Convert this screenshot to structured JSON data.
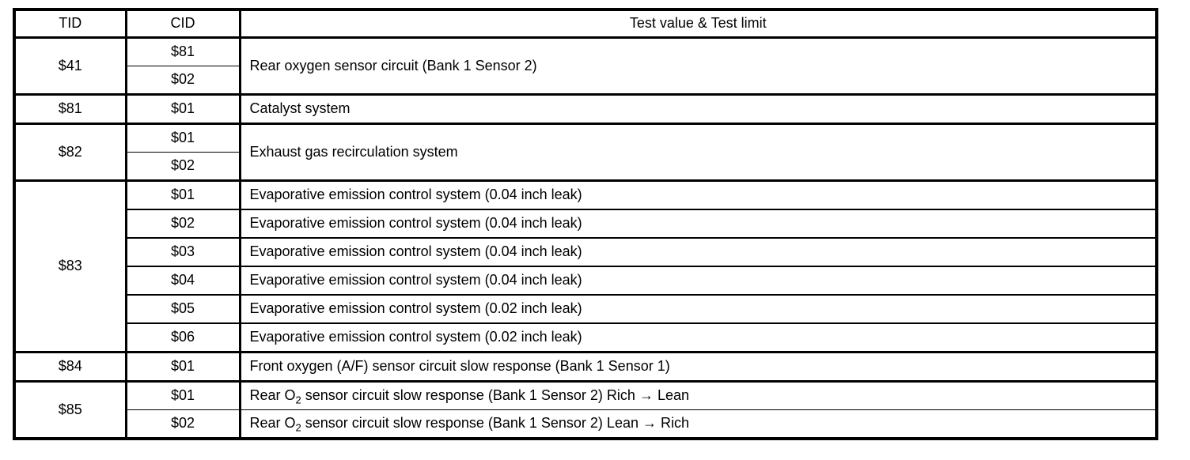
{
  "colors": {
    "background": "#ffffff",
    "border": "#000000",
    "text": "#000000"
  },
  "table": {
    "headers": {
      "tid": "TID",
      "cid": "CID",
      "test": "Test value & Test limit"
    },
    "rows": [
      {
        "tid": "$41",
        "cid": "$81",
        "desc": "Rear oxygen sensor circuit (Bank 1 Sensor 2)"
      },
      {
        "cid": "$02"
      },
      {
        "tid": "$81",
        "cid": "$01",
        "desc": "Catalyst system"
      },
      {
        "tid": "$82",
        "cid": "$01",
        "desc": "Exhaust gas recirculation system"
      },
      {
        "cid": "$02"
      },
      {
        "tid": "$83",
        "cid": "$01",
        "desc": "Evaporative emission control system (0.04 inch leak)"
      },
      {
        "cid": "$02",
        "desc": "Evaporative emission control system (0.04 inch leak)"
      },
      {
        "cid": "$03",
        "desc": "Evaporative emission control system (0.04 inch leak)"
      },
      {
        "cid": "$04",
        "desc": "Evaporative emission control system (0.04 inch leak)"
      },
      {
        "cid": "$05",
        "desc": "Evaporative emission control system (0.02 inch leak)"
      },
      {
        "cid": "$06",
        "desc": "Evaporative emission control system (0.02 inch leak)"
      },
      {
        "tid": "$84",
        "cid": "$01",
        "desc": "Front oxygen (A/F) sensor circuit slow response (Bank 1 Sensor 1)"
      },
      {
        "tid": "$85",
        "cid": "$01",
        "desc_prefix": "Rear O",
        "desc_sub": "2",
        "desc_rest": " sensor circuit slow response (Bank 1 Sensor 2) Rich → Lean"
      },
      {
        "cid": "$02",
        "desc_prefix": "Rear O",
        "desc_sub": "2",
        "desc_rest": " sensor circuit slow response (Bank 1 Sensor 2) Lean → Rich"
      }
    ]
  }
}
